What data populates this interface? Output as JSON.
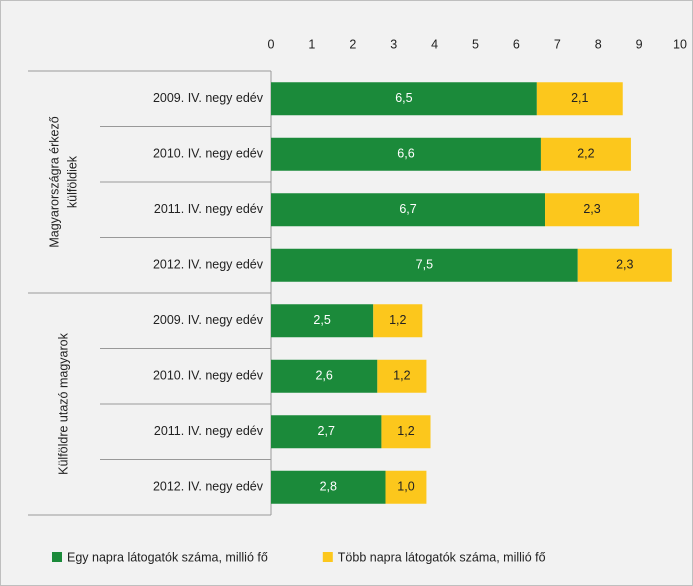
{
  "chart_data": {
    "type": "bar",
    "orientation": "horizontal",
    "stacked": true,
    "groups": [
      {
        "name": [
          "Magyarországra érkező",
          "külföldiek"
        ],
        "categories": [
          "2009. IV. negy edév",
          "2010. IV. negy edév",
          "2011. IV. negy edév",
          "2012. IV. negy edév"
        ]
      },
      {
        "name": [
          "Külföldre utazó magyarok"
        ],
        "categories": [
          "2009. IV. negy edév",
          "2010. IV. negy edév",
          "2011. IV. negy edév",
          "2012. IV. negy edév"
        ]
      }
    ],
    "series": [
      {
        "name": "Egy napra látogatók száma, millió fő",
        "color": "#1b8a3a",
        "label_color": "#ffffff",
        "values": [
          6.5,
          6.6,
          6.7,
          7.5,
          2.5,
          2.6,
          2.7,
          2.8
        ],
        "value_labels": [
          "6,5",
          "6,6",
          "6,7",
          "7,5",
          "2,5",
          "2,6",
          "2,7",
          "2,8"
        ]
      },
      {
        "name": "Több napra látogatók száma, millió fő",
        "color": "#fcc71c",
        "label_color": "#222222",
        "values": [
          2.1,
          2.2,
          2.3,
          2.3,
          1.2,
          1.2,
          1.2,
          1.0
        ],
        "value_labels": [
          "2,1",
          "2,2",
          "2,3",
          "2,3",
          "1,2",
          "1,2",
          "1,2",
          "1,0"
        ]
      }
    ],
    "xlim": [
      0,
      10
    ],
    "xticks": [
      0,
      1,
      2,
      3,
      4,
      5,
      6,
      7,
      8,
      9,
      10
    ],
    "legend": "bottom"
  }
}
